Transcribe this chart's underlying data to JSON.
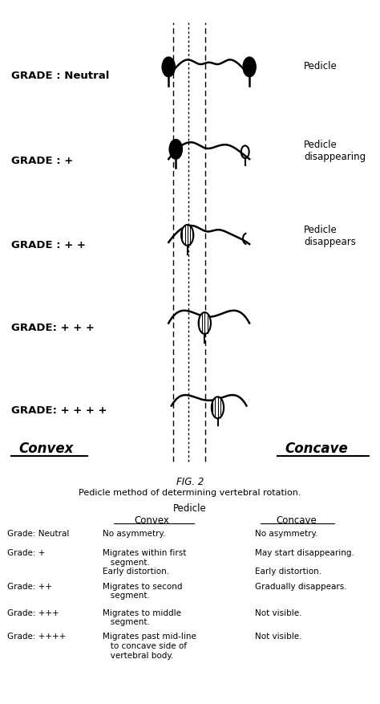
{
  "fig_label": "FIG. 2",
  "fig_caption": "Pedicle method of determining vertebral rotation.",
  "grades": [
    "Neutral",
    "+",
    "+ +",
    "+ + +",
    "+ + + +"
  ],
  "grade_labels": [
    "GRADE : Neutral",
    "GRADE : +",
    "GRADE : + +",
    "GRADE: + + +",
    "GRADE: + + + +"
  ],
  "right_labels": [
    "Pedicle",
    "Pedicle\ndisappearing",
    "Pedicle\ndisappears",
    "",
    ""
  ],
  "convex_label": "Convex",
  "concave_label": "Concave",
  "table_title": "Pedicle",
  "table_headers": [
    "",
    "Convex",
    "Concave"
  ],
  "table_rows": [
    [
      "Grade: Neutral",
      "No asymmetry.",
      "No asymmetry."
    ],
    [
      "Grade: +",
      "Migrates within first\n   segment.\nEarly distortion.",
      "May start disappearing.\n\nEarly distortion."
    ],
    [
      "Grade: ++",
      "Migrates to second\n   segment.",
      "Gradually disappears."
    ],
    [
      "Grade: +++",
      "Migrates to middle\n   segment.",
      "Not visible."
    ],
    [
      "Grade: ++++",
      "Migrates past mid-line\n   to concave side of\n   vertebral body.",
      "Not visible."
    ]
  ],
  "bg_color": "#ffffff",
  "line_color": "#000000"
}
